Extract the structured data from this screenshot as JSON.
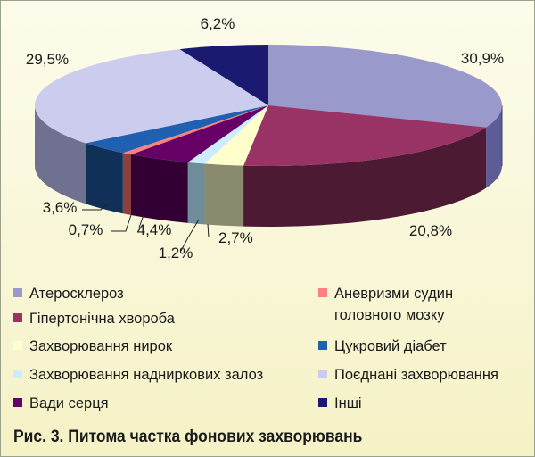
{
  "chart_data": {
    "type": "pie",
    "series": [
      {
        "name": "Атеросклероз",
        "value": 30.9,
        "label": "30,9%",
        "color": "#9999cc",
        "side": "#5c5c99"
      },
      {
        "name": "Гіпертонічна хвороба",
        "value": 20.8,
        "label": "20,8%",
        "color": "#993366",
        "side": "#4d1a33"
      },
      {
        "name": "Захворювання нирок",
        "value": 2.7,
        "label": "2,7%",
        "color": "#ffffcc",
        "side": "#8a8a6e"
      },
      {
        "name": "Захворювання наднирковиx залоз",
        "value": 1.2,
        "label": "1,2%",
        "color": "#ccecff",
        "side": "#6e8c99"
      },
      {
        "name": "Вади серця",
        "value": 4.4,
        "label": "4,4%",
        "color": "#660066",
        "side": "#330033"
      },
      {
        "name": "Аневризми судин головного мозку",
        "value": 0.7,
        "label": "0,7%",
        "color": "#ff8080",
        "side": "#8c4040"
      },
      {
        "name": "Цукровий діабет",
        "value": 3.6,
        "label": "3,6%",
        "color": "#2060b0",
        "side": "#103058"
      },
      {
        "name": "Поєднані захворювання",
        "value": 29.5,
        "label": "29,5%",
        "color": "#ccccee",
        "side": "#707090"
      },
      {
        "name": "Інші",
        "value": 6.2,
        "label": "6,2%",
        "color": "#1a1a70",
        "side": "#0d0d38"
      }
    ]
  },
  "legend": {
    "left": [
      {
        "label": "Атеросклероз",
        "color": "#9999cc"
      },
      {
        "label": "Гіпертонічна хвороба",
        "color": "#993366"
      },
      {
        "label": "Захворювання нирок",
        "color": "#ffffcc"
      },
      {
        "label": "Захворювання наднирковиx залоз",
        "color": "#ccecff"
      },
      {
        "label": "Вади серця",
        "color": "#660066"
      }
    ],
    "right": [
      {
        "label": "Аневризми судин\nголовного мозку",
        "color": "#ff8080"
      },
      {
        "label": "Цукровий діабет",
        "color": "#2060b0"
      },
      {
        "label": "Поєднані захворювання",
        "color": "#ccccee"
      },
      {
        "label": "Інші",
        "color": "#1a1a70"
      }
    ]
  },
  "caption": "Рис. 3. Питома частка фонових захворювань"
}
